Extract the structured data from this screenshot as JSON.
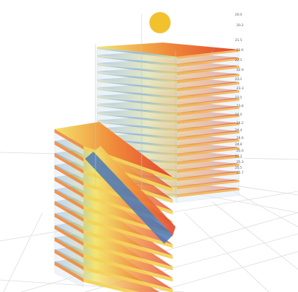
{
  "scene": {
    "sun": {
      "color": "#F2C12E",
      "icon": "sun-icon"
    },
    "floor_labels": [
      "20.0",
      "20.2",
      "21.5",
      "21.6",
      "22.5",
      "22.9",
      "23.1",
      "23.3",
      "23.5",
      "23.8",
      "24.0",
      "24.2",
      "24.4",
      "24.6",
      "24.8",
      "25.0",
      "25.2",
      "25.3",
      "25.5",
      "25.7"
    ],
    "palette": {
      "cool": "#6FA3DA",
      "mid": "#F3E46B",
      "warm": "#F08A3A",
      "hot": "#E2452F",
      "glass": "#C9DCF0"
    }
  }
}
